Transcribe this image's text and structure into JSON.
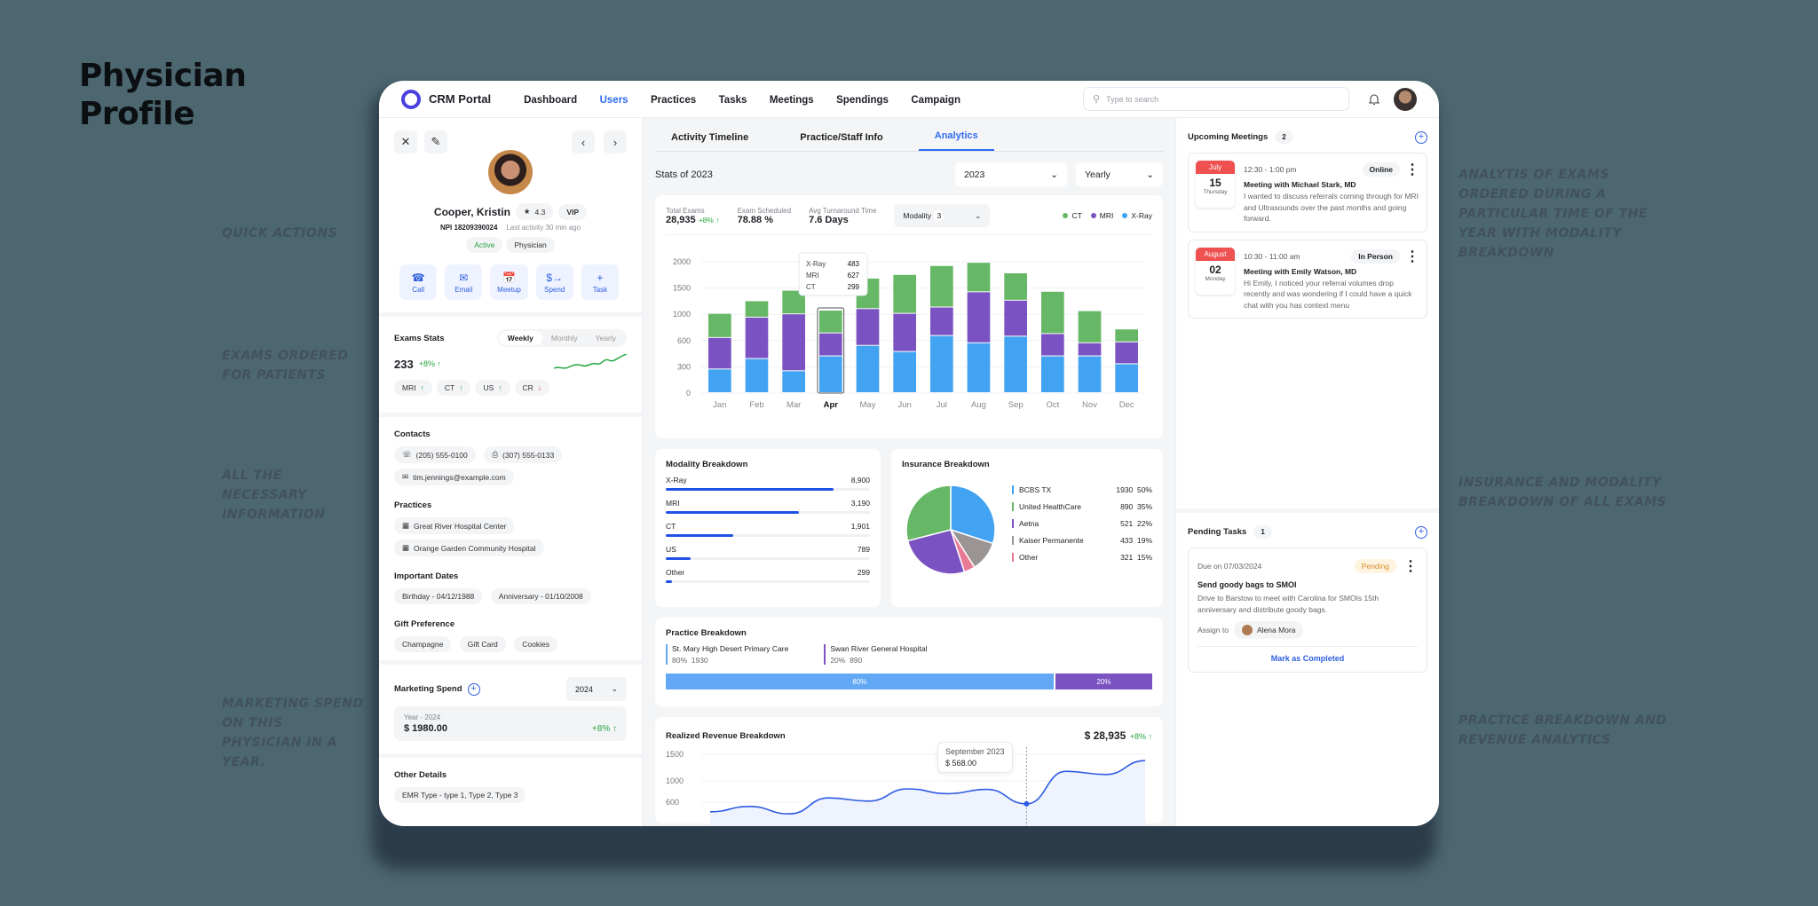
{
  "page": {
    "title_line1": "Physician",
    "title_line2": "Profile",
    "annotations": {
      "left": [
        "Quick Actions",
        "Exams ordered for patients",
        "All the necessary information",
        "Marketing spend on this physician in a year."
      ],
      "right": [
        "Analytis of exams ordered during a particular time of the year with modality breakdown",
        "Insurance and modality breakdown of all exams",
        "Practice breakdown and revenue analytics"
      ]
    }
  },
  "topbar": {
    "brand": "CRM Portal",
    "nav": [
      "Dashboard",
      "Users",
      "Practices",
      "Tasks",
      "Meetings",
      "Spendings",
      "Campaign"
    ],
    "active_nav": "Users",
    "search_placeholder": "Type to search"
  },
  "profile": {
    "name": "Cooper, Kristin",
    "rating": "4.3",
    "tier": "VIP",
    "npi": "NPI 18209390024",
    "last_activity": "Last activity 30 min ago",
    "status": "Active",
    "role": "Physician",
    "quick_actions": [
      "Call",
      "Email",
      "Meetup",
      "Spend",
      "Task"
    ]
  },
  "exam_stats": {
    "title": "Exams Stats",
    "periods": [
      "Weekly",
      "Monthly",
      "Yearly"
    ],
    "active_period": "Weekly",
    "value": "233",
    "change": "+8% ↑",
    "modalities": [
      {
        "label": "MRI",
        "trend": "↑",
        "dir": "up"
      },
      {
        "label": "CT",
        "trend": "↑",
        "dir": "up"
      },
      {
        "label": "US",
        "trend": "↑",
        "dir": "up"
      },
      {
        "label": "CR",
        "trend": "↓",
        "dir": "down"
      }
    ]
  },
  "contacts": {
    "title": "Contacts",
    "phone": "(205) 555-0100",
    "fax": "(307) 555-0133",
    "email": "tim.jennings@example.com"
  },
  "practices": {
    "title": "Practices",
    "items": [
      "Great River Hospital Center",
      "Orange Garden Community Hospital"
    ]
  },
  "important_dates": {
    "title": "Important Dates",
    "items": [
      "Birthday - 04/12/1988",
      "Anniversary - 01/10/2008"
    ]
  },
  "gift_preference": {
    "title": "Gift Preference",
    "items": [
      "Champagne",
      "Gift Card",
      "Cookies"
    ]
  },
  "marketing_spend": {
    "title": "Marketing Spend",
    "year_select": "2024",
    "label": "Year - 2024",
    "amount": "$ 1980.00",
    "change": "+8% ↑"
  },
  "other_details": {
    "title": "Other Details",
    "items": [
      "EMR Type - type 1, Type 2, Type 3"
    ]
  },
  "tabs": [
    "Activity Timeline",
    "Practice/Staff Info",
    "Analytics"
  ],
  "active_tab": "Analytics",
  "analytics": {
    "stats_title": "Stats of 2023",
    "year_select": "2023",
    "period_select": "Yearly",
    "kpis": [
      {
        "label": "Total Exams",
        "value": "28,935",
        "change": "+8% ↑"
      },
      {
        "label": "Exam Scheduled",
        "value": "78.88 %"
      },
      {
        "label": "Avg Turnaround Time",
        "value": "7.6 Days"
      }
    ],
    "modality_filter": {
      "label": "Modality",
      "count": "3"
    },
    "legend": [
      {
        "label": "CT",
        "color": "#66b766"
      },
      {
        "label": "MRI",
        "color": "#7b52c2"
      },
      {
        "label": "X-Ray",
        "color": "#41a3f2"
      }
    ],
    "tooltip": {
      "rows": [
        [
          "X-Ray",
          "483"
        ],
        [
          "MRI",
          "627"
        ],
        [
          "CT",
          "299"
        ]
      ]
    },
    "modality_breakdown": {
      "title": "Modality Breakdown",
      "items": [
        {
          "label": "X-Ray",
          "value": "8,900",
          "pct": 82
        },
        {
          "label": "MRI",
          "value": "3,190",
          "pct": 65
        },
        {
          "label": "CT",
          "value": "1,901",
          "pct": 33
        },
        {
          "label": "US",
          "value": "789",
          "pct": 12
        },
        {
          "label": "Other",
          "value": "299",
          "pct": 3
        }
      ]
    },
    "insurance_breakdown": {
      "title": "Insurance Breakdown",
      "items": [
        {
          "label": "BCBS TX",
          "value": "1930",
          "pct": "50%",
          "color": "#41a3f2"
        },
        {
          "label": "United HealthCare",
          "value": "890",
          "pct": "35%",
          "color": "#66b766"
        },
        {
          "label": "Aetna",
          "value": "521",
          "pct": "22%",
          "color": "#7b52c2"
        },
        {
          "label": "Kaiser Permanente",
          "value": "433",
          "pct": "19%",
          "color": "#9b9495"
        },
        {
          "label": "Other",
          "value": "321",
          "pct": "15%",
          "color": "#e97a93"
        }
      ]
    },
    "practice_breakdown": {
      "title": "Practice Breakdown",
      "items": [
        {
          "label": "St. Mary High Desert Primary Care",
          "pct": "80%",
          "value": "1930",
          "color": "#62a8f5"
        },
        {
          "label": "Swan River General Hospital",
          "pct": "20%",
          "value": "890",
          "color": "#7b52c2"
        }
      ]
    },
    "revenue": {
      "title": "Realized Revenue Breakdown",
      "total": "$ 28,935",
      "change": "+8% ↑",
      "tooltip_label": "September 2023",
      "tooltip_value": "$ 568.00"
    }
  },
  "meetings": {
    "title": "Upcoming Meetings",
    "count": "2",
    "items": [
      {
        "month": "July",
        "day": "15",
        "weekday": "Thursday",
        "time": "12:30 - 1:00 pm",
        "mode": "Online",
        "title": "Meeting with Michael Stark, MD",
        "desc": "I wanted to discuss referrals coming through for MRI and Ultrasounds over the past months and going forward."
      },
      {
        "month": "August",
        "day": "02",
        "weekday": "Monday",
        "time": "10:30 - 11:00 am",
        "mode": "In Person",
        "title": "Meeting with Emily Watson, MD",
        "desc": "Hi Emily, I noticed your referral volumes drop recently and was wondering if I could have a quick chat with you has context menu"
      }
    ]
  },
  "tasks": {
    "title": "Pending Tasks",
    "count": "1",
    "items": [
      {
        "due": "Due on 07/03/2024",
        "status": "Pending",
        "title": "Send goody bags to SMOI",
        "desc": "Drive to Barstow to meet with Carolina for SMOIs 15th anniversary and distribute goody bags.",
        "assign_label": "Assign to",
        "assignee": "Alena Mora",
        "action": "Mark as Completed"
      }
    ]
  },
  "chart_data": [
    {
      "type": "bar",
      "title": "Stats of 2023",
      "stacked": true,
      "categories": [
        "Jan",
        "Feb",
        "Mar",
        "Apr",
        "May",
        "Jun",
        "Jul",
        "Aug",
        "Sep",
        "Oct",
        "Nov",
        "Dec"
      ],
      "series": [
        {
          "name": "X-Ray",
          "color": "#41a3f2",
          "values": [
            270,
            390,
            250,
            420,
            540,
            470,
            670,
            570,
            660,
            420,
            420,
            330
          ]
        },
        {
          "name": "MRI",
          "color": "#7b52c2",
          "values": [
            370,
            560,
            750,
            290,
            560,
            540,
            460,
            850,
            600,
            280,
            150,
            250
          ]
        },
        {
          "name": "CT",
          "color": "#66b766",
          "values": [
            370,
            300,
            450,
            360,
            580,
            740,
            790,
            560,
            520,
            730,
            490,
            190
          ]
        }
      ],
      "yticks": [
        0,
        300,
        600,
        1000,
        1500,
        2000
      ],
      "ylim": [
        0,
        2000
      ],
      "highlighted": "Apr"
    },
    {
      "type": "pie",
      "title": "Insurance Breakdown",
      "categories": [
        "BCBS TX",
        "United HealthCare",
        "Aetna",
        "Kaiser Permanente",
        "Other"
      ],
      "values": [
        1930,
        890,
        521,
        433,
        321
      ]
    },
    {
      "type": "area",
      "title": "Realized Revenue Breakdown",
      "x": [
        "Jan",
        "Feb",
        "Mar",
        "Apr",
        "May",
        "Jun",
        "Jul",
        "Aug",
        "Sep",
        "Oct",
        "Nov",
        "Dec"
      ],
      "values": [
        420,
        520,
        380,
        680,
        620,
        850,
        760,
        840,
        568,
        1180,
        1120,
        1380
      ],
      "yticks": [
        600,
        1000,
        1500
      ],
      "annotation": {
        "x": "Sep",
        "label": "September 2023",
        "value": "$ 568.00"
      }
    }
  ]
}
